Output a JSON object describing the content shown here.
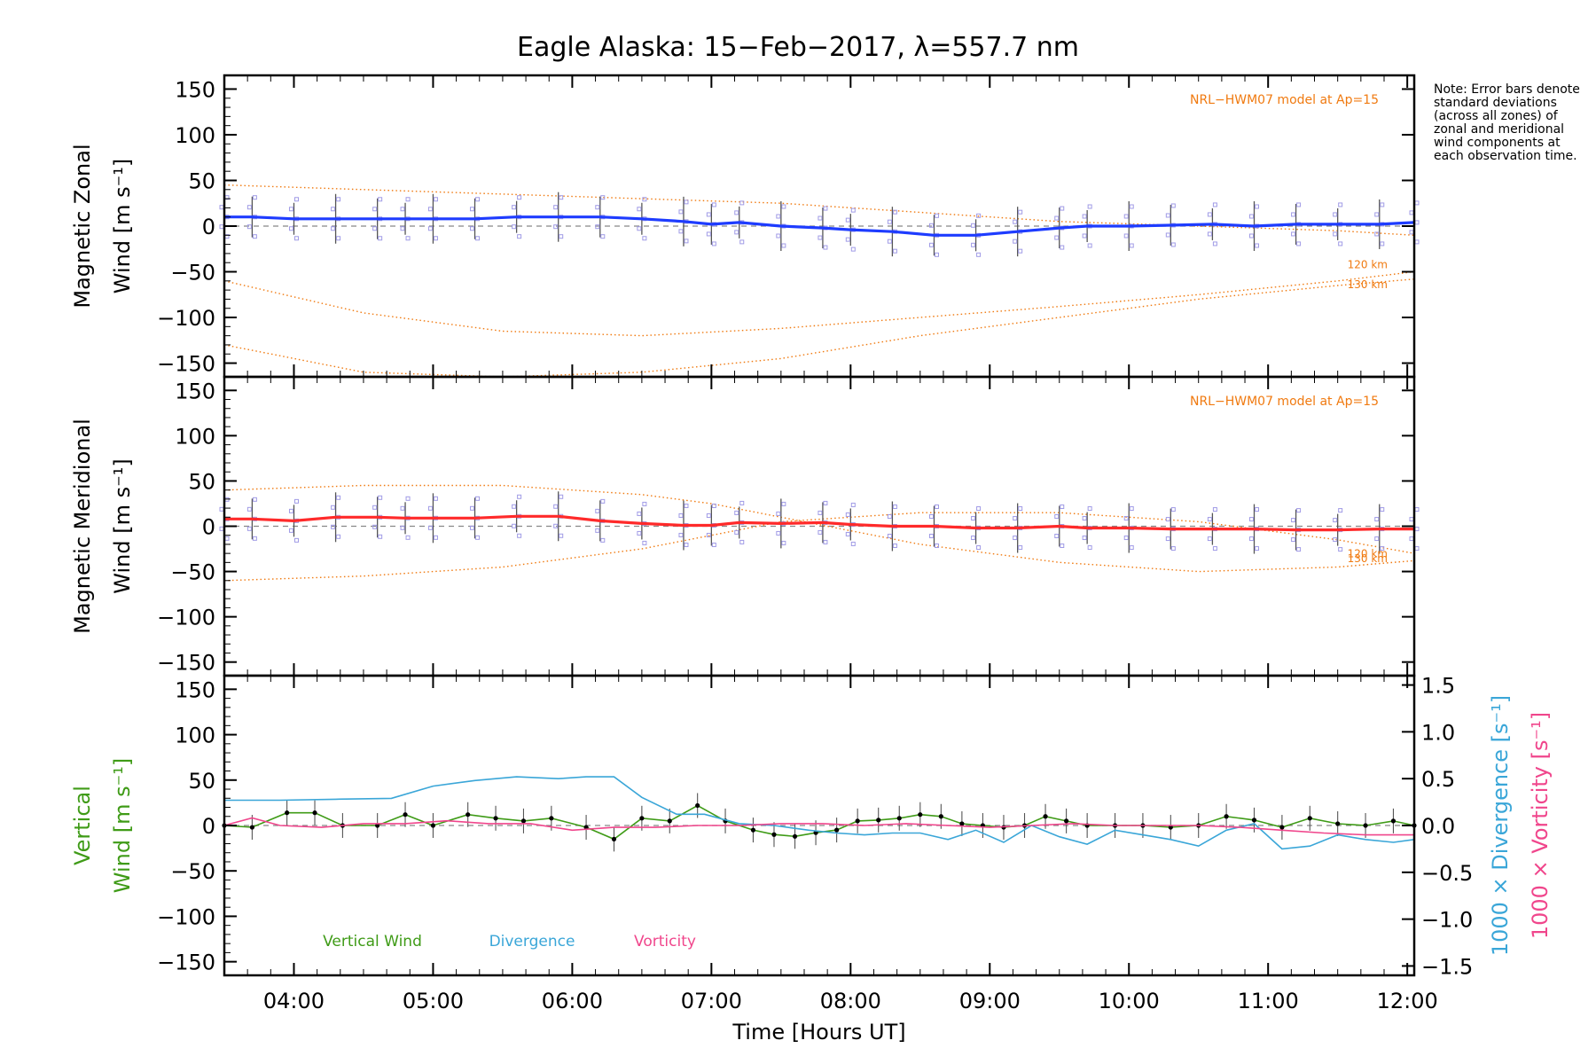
{
  "title": "Eagle Alaska: 15−Feb−2017, λ=557.7 nm",
  "note": "Note: Error bars denote standard deviations (across all zones) of zonal and meridional wind components at each observation time.",
  "colors": {
    "zonal": "#1e3cff",
    "meridional": "#ff2a2a",
    "vertical": "#3f9b17",
    "divergence": "#3aa6d8",
    "vorticity": "#f0468c",
    "model": "#f07a10",
    "scatter": "#a09be6"
  },
  "chart_data": [
    {
      "type": "line",
      "panel": "zonal",
      "ylabel_line1": "Magnetic Zonal",
      "ylabel_line2": "Wind [m s⁻¹]",
      "ylim": [
        -165,
        165
      ],
      "yticks": [
        150,
        100,
        50,
        0,
        -50,
        -100,
        -150
      ],
      "xlim": [
        3.5,
        12.05
      ],
      "model_label": "NRL−HWM07 model at Ap=15",
      "model_alt_labels": [
        "120 km",
        "130 km"
      ],
      "series": [
        {
          "role": "measured",
          "x": [
            3.5,
            3.7,
            4.0,
            4.3,
            4.6,
            4.8,
            5.0,
            5.3,
            5.6,
            5.9,
            6.2,
            6.5,
            6.8,
            7.0,
            7.2,
            7.5,
            7.8,
            8.0,
            8.3,
            8.6,
            8.9,
            9.2,
            9.5,
            9.7,
            10.0,
            10.3,
            10.6,
            10.9,
            11.2,
            11.5,
            11.8,
            12.05
          ],
          "y": [
            10,
            10,
            8,
            8,
            8,
            8,
            8,
            8,
            10,
            10,
            10,
            8,
            5,
            2,
            4,
            0,
            -2,
            -4,
            -6,
            -10,
            -10,
            -6,
            -2,
            0,
            0,
            1,
            2,
            0,
            2,
            2,
            2,
            4
          ]
        },
        {
          "role": "model",
          "name": "120 km",
          "x": [
            3.5,
            4.5,
            5.5,
            6.5,
            7.5,
            8.5,
            9.5,
            10.5,
            11.5,
            12.05
          ],
          "y": [
            -60,
            -95,
            -115,
            -120,
            -112,
            -100,
            -88,
            -75,
            -60,
            -50
          ]
        },
        {
          "role": "model",
          "name": "130 km",
          "x": [
            3.5,
            4.5,
            5.5,
            6.5,
            7.5,
            8.5,
            9.5,
            10.5,
            11.5,
            12.05
          ],
          "y": [
            -130,
            -160,
            -165,
            -160,
            -145,
            -120,
            -100,
            -80,
            -65,
            -58
          ]
        },
        {
          "role": "model_upper",
          "x": [
            3.5,
            4.5,
            5.5,
            6.5,
            7.5,
            8.5,
            9.5,
            10.5,
            11.5,
            12.05
          ],
          "y": [
            45,
            40,
            35,
            30,
            25,
            15,
            5,
            0,
            -5,
            -10
          ]
        }
      ]
    },
    {
      "type": "line",
      "panel": "meridional",
      "ylabel_line1": "Magnetic Meridional",
      "ylabel_line2": "Wind [m s⁻¹]",
      "ylim": [
        -165,
        165
      ],
      "yticks": [
        150,
        100,
        50,
        0,
        -50,
        -100,
        -150
      ],
      "xlim": [
        3.5,
        12.05
      ],
      "model_label": "NRL−HWM07 model at Ap=15",
      "model_alt_labels": [
        "120 km",
        "130 km"
      ],
      "series": [
        {
          "role": "measured",
          "x": [
            3.5,
            3.7,
            4.0,
            4.3,
            4.6,
            4.8,
            5.0,
            5.3,
            5.6,
            5.9,
            6.2,
            6.5,
            6.8,
            7.0,
            7.2,
            7.5,
            7.8,
            8.0,
            8.3,
            8.6,
            8.9,
            9.2,
            9.5,
            9.7,
            10.0,
            10.3,
            10.6,
            10.9,
            11.2,
            11.5,
            11.8,
            12.05
          ],
          "y": [
            8,
            8,
            6,
            10,
            10,
            9,
            9,
            9,
            11,
            11,
            6,
            3,
            1,
            1,
            4,
            3,
            4,
            2,
            0,
            0,
            -2,
            -2,
            0,
            -2,
            -2,
            -3,
            -3,
            -3,
            -4,
            -4,
            -3,
            -3
          ]
        },
        {
          "role": "model",
          "name": "120 km",
          "x": [
            3.5,
            4.5,
            5.5,
            6.5,
            7.0,
            7.5,
            8.5,
            9.5,
            10.5,
            11.5,
            12.05
          ],
          "y": [
            40,
            45,
            45,
            35,
            25,
            10,
            -20,
            -40,
            -50,
            -45,
            -38
          ]
        },
        {
          "role": "model",
          "name": "130 km",
          "x": [
            3.5,
            4.5,
            5.5,
            6.5,
            7.0,
            7.5,
            8.5,
            9.5,
            10.5,
            11.5,
            12.05
          ],
          "y": [
            -60,
            -55,
            -45,
            -25,
            -10,
            5,
            15,
            15,
            5,
            -15,
            -30
          ]
        }
      ]
    },
    {
      "type": "line",
      "panel": "vertical",
      "ylabel_line1": "Vertical",
      "ylabel_line2": "Wind [m s⁻¹]",
      "ylim": [
        -165,
        165
      ],
      "yticks": [
        150,
        100,
        50,
        0,
        -50,
        -100,
        -150
      ],
      "y2label_div": "1000 × Divergence [s⁻¹]",
      "y2label_vor": "1000 × Vorticity [s⁻¹]",
      "y2lim": [
        -1.6,
        1.6
      ],
      "y2ticks": [
        "1.5",
        "1.0",
        "0.5",
        "0.0",
        "−0.5",
        "−1.0",
        "−1.5"
      ],
      "xlim": [
        3.5,
        12.05
      ],
      "xticks": [
        "04:00",
        "05:00",
        "06:00",
        "07:00",
        "08:00",
        "09:00",
        "10:00",
        "11:00",
        "12:00"
      ],
      "xlabel": "Time [Hours UT]",
      "legend": [
        "Vertical Wind",
        "Divergence",
        "Vorticity"
      ],
      "series": [
        {
          "name": "Vertical Wind",
          "x": [
            3.5,
            3.7,
            3.95,
            4.15,
            4.35,
            4.6,
            4.8,
            5.0,
            5.25,
            5.45,
            5.65,
            5.85,
            6.1,
            6.3,
            6.5,
            6.7,
            6.9,
            7.1,
            7.3,
            7.45,
            7.6,
            7.75,
            7.9,
            8.05,
            8.2,
            8.35,
            8.5,
            8.65,
            8.8,
            8.95,
            9.1,
            9.25,
            9.4,
            9.55,
            9.7,
            9.9,
            10.1,
            10.3,
            10.5,
            10.7,
            10.9,
            11.1,
            11.3,
            11.5,
            11.7,
            11.9,
            12.05
          ],
          "y": [
            0,
            -2,
            14,
            14,
            0,
            0,
            12,
            0,
            12,
            8,
            5,
            8,
            -2,
            -15,
            8,
            5,
            22,
            5,
            -5,
            -10,
            -12,
            -8,
            -5,
            5,
            6,
            8,
            12,
            10,
            2,
            0,
            -2,
            0,
            10,
            5,
            0,
            0,
            0,
            -2,
            0,
            10,
            6,
            -2,
            8,
            2,
            0,
            5,
            0
          ]
        },
        {
          "name": "Divergence",
          "axis": "right",
          "x": [
            3.5,
            3.9,
            4.3,
            4.7,
            5.0,
            5.3,
            5.6,
            5.9,
            6.1,
            6.3,
            6.5,
            6.75,
            6.95,
            7.2,
            7.45,
            7.7,
            7.9,
            8.1,
            8.3,
            8.5,
            8.7,
            8.9,
            9.1,
            9.3,
            9.5,
            9.7,
            9.9,
            10.1,
            10.3,
            10.5,
            10.7,
            10.9,
            11.1,
            11.3,
            11.5,
            11.7,
            11.9,
            12.05
          ],
          "y": [
            0.27,
            0.27,
            0.28,
            0.29,
            0.42,
            0.48,
            0.52,
            0.5,
            0.52,
            0.52,
            0.3,
            0.12,
            0.12,
            0.02,
            0.0,
            -0.05,
            -0.08,
            -0.1,
            -0.08,
            -0.08,
            -0.15,
            -0.05,
            -0.18,
            0.0,
            -0.12,
            -0.2,
            -0.05,
            -0.1,
            -0.15,
            -0.22,
            -0.05,
            0.02,
            -0.25,
            -0.22,
            -0.1,
            -0.15,
            -0.18,
            -0.15
          ]
        },
        {
          "name": "Vorticity",
          "axis": "right",
          "x": [
            3.5,
            3.7,
            3.9,
            4.2,
            4.5,
            4.8,
            5.1,
            5.4,
            5.7,
            6.0,
            6.3,
            6.6,
            6.9,
            7.2,
            7.5,
            7.8,
            8.1,
            8.4,
            8.7,
            9.0,
            9.3,
            9.6,
            9.9,
            10.2,
            10.5,
            10.8,
            11.1,
            11.4,
            11.7,
            12.05
          ],
          "y": [
            0.0,
            0.08,
            0.0,
            -0.02,
            0.02,
            0.02,
            0.05,
            0.02,
            0.02,
            -0.05,
            -0.02,
            -0.02,
            0.0,
            0.0,
            0.02,
            0.02,
            0.0,
            0.02,
            0.0,
            -0.02,
            0.0,
            0.02,
            0.0,
            0.0,
            0.0,
            -0.02,
            -0.05,
            -0.08,
            -0.1,
            -0.1
          ]
        }
      ]
    }
  ]
}
